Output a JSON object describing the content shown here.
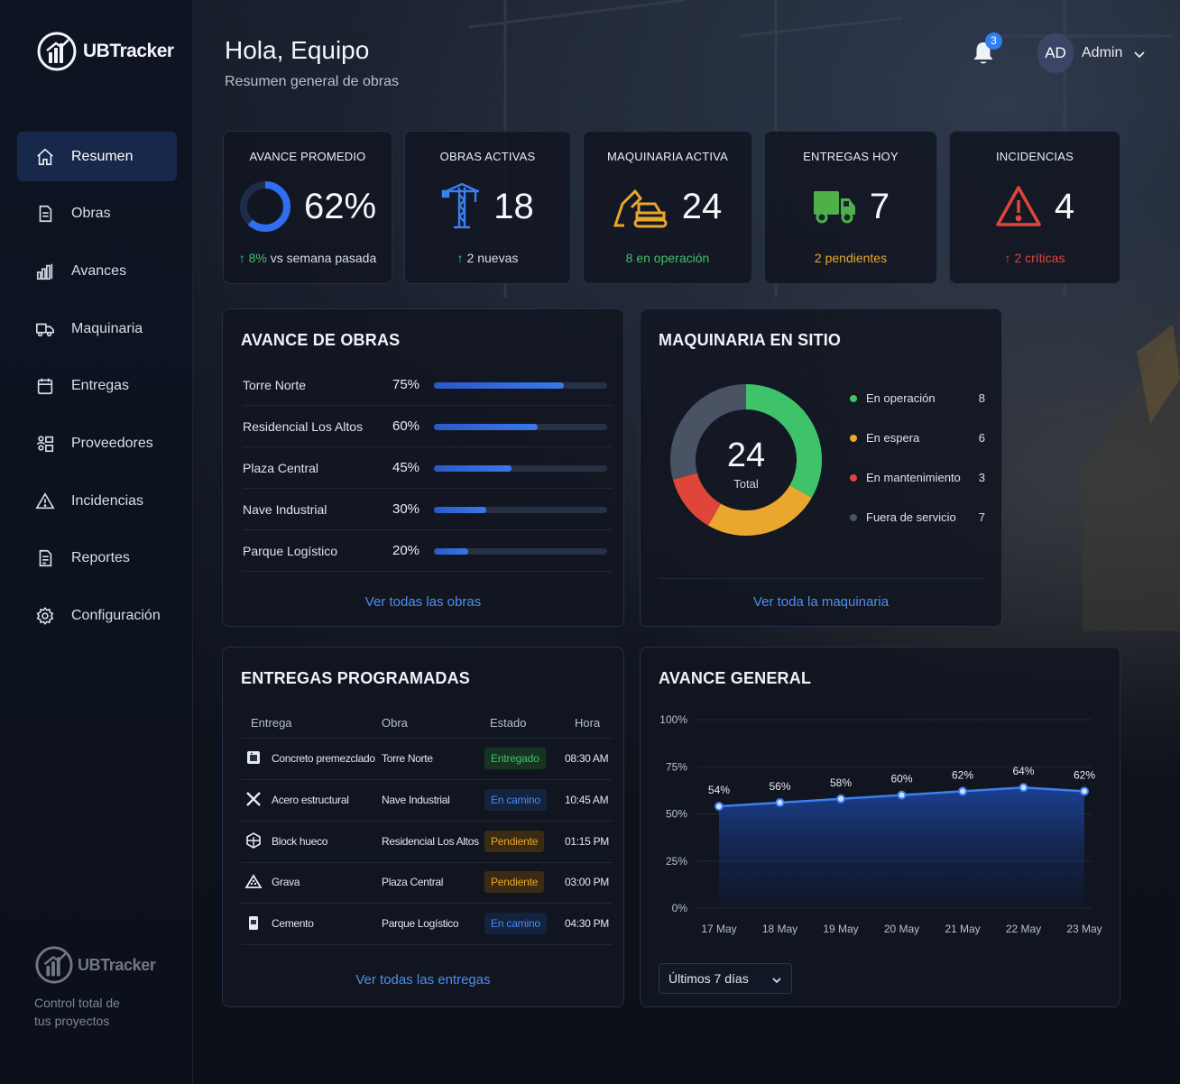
{
  "brand": {
    "name": "UBTracker",
    "tagline": "Control total de tus proyectos"
  },
  "sidebar": {
    "items": [
      {
        "label": "Resumen",
        "icon": "home-icon",
        "active": true
      },
      {
        "label": "Obras",
        "icon": "document-icon"
      },
      {
        "label": "Avances",
        "icon": "bar-chart-icon"
      },
      {
        "label": "Maquinaria",
        "icon": "truck-icon"
      },
      {
        "label": "Entregas",
        "icon": "calendar-icon"
      },
      {
        "label": "Proveedores",
        "icon": "suppliers-icon"
      },
      {
        "label": "Incidencias",
        "icon": "warning-icon"
      },
      {
        "label": "Reportes",
        "icon": "report-icon"
      },
      {
        "label": "Configuración",
        "icon": "gear-icon"
      }
    ]
  },
  "header": {
    "greeting": "Hola, Equipo",
    "subtitle": "Resumen general de obras",
    "notifications": "3",
    "avatar_initials": "AD",
    "user_name": "Admin"
  },
  "kpis": {
    "avance": {
      "title": "AVANCE PROMEDIO",
      "value": "62%",
      "progress": 0.62,
      "delta": "8%",
      "delta_text": "vs semana pasada"
    },
    "obras": {
      "title": "OBRAS ACTIVAS",
      "value": "18",
      "sub": "2 nuevas"
    },
    "maquinaria": {
      "title": "MAQUINARIA ACTIVA",
      "value": "24",
      "sub": "8 en operación"
    },
    "entregas": {
      "title": "ENTREGAS HOY",
      "value": "7",
      "sub": "2 pendientes"
    },
    "incidencias": {
      "title": "INCIDENCIAS",
      "value": "4",
      "sub": "2 críticas"
    }
  },
  "colors": {
    "accent": "#3b78e6",
    "green": "#3fc36a",
    "yellow": "#e9a72e",
    "red": "#e0453a",
    "gray": "#4a5364"
  },
  "avance_obras": {
    "title": "AVANCE DE OBRAS",
    "rows": [
      {
        "name": "Torre Norte",
        "pct": "75%",
        "value": 0.75
      },
      {
        "name": "Residencial Los Altos",
        "pct": "60%",
        "value": 0.6
      },
      {
        "name": "Plaza Central",
        "pct": "45%",
        "value": 0.45
      },
      {
        "name": "Nave Industrial",
        "pct": "30%",
        "value": 0.3
      },
      {
        "name": "Parque Logístico",
        "pct": "20%",
        "value": 0.2
      }
    ],
    "link": "Ver todas las obras"
  },
  "maquinaria": {
    "title": "MAQUINARIA EN SITIO",
    "total": "24",
    "total_label": "Total",
    "legend": [
      {
        "label": "En operación",
        "value": "8",
        "color": "#3fc36a"
      },
      {
        "label": "En espera",
        "value": "6",
        "color": "#e9a72e"
      },
      {
        "label": "En mantenimiento",
        "value": "3",
        "color": "#e0453a"
      },
      {
        "label": "Fuera de servicio",
        "value": "7",
        "color": "#4a5364"
      }
    ],
    "link": "Ver toda la maquinaria"
  },
  "entregas": {
    "title": "ENTREGAS PROGRAMADAS",
    "columns": [
      "Entrega",
      "Obra",
      "Estado",
      "Hora"
    ],
    "rows": [
      {
        "item": "Concreto premezclado",
        "obra": "Torre Norte",
        "estado": "Entregado",
        "hora": "08:30 AM",
        "icon": "concrete-mixer-icon",
        "status": "ok"
      },
      {
        "item": "Acero estructural",
        "obra": "Nave Industrial",
        "estado": "En camino",
        "hora": "10:45 AM",
        "icon": "steel-beam-icon",
        "status": "way"
      },
      {
        "item": "Block hueco",
        "obra": "Residencial Los Altos",
        "estado": "Pendiente",
        "hora": "01:15 PM",
        "icon": "blocks-icon",
        "status": "pend"
      },
      {
        "item": "Grava",
        "obra": "Plaza Central",
        "estado": "Pendiente",
        "hora": "03:00 PM",
        "icon": "gravel-icon",
        "status": "pend"
      },
      {
        "item": "Cemento",
        "obra": "Parque Logístico",
        "estado": "En camino",
        "hora": "04:30 PM",
        "icon": "cement-bag-icon",
        "status": "way"
      }
    ],
    "link": "Ver todas las entregas"
  },
  "avance_general": {
    "title": "AVANCE GENERAL",
    "range_select": "Últimos 7 días"
  },
  "chart_data": {
    "type": "area",
    "title": "AVANCE GENERAL",
    "categories": [
      "17 May",
      "18 May",
      "19 May",
      "20 May",
      "21 May",
      "22 May",
      "23 May"
    ],
    "values": [
      54,
      56,
      58,
      60,
      62,
      64,
      62
    ],
    "labels": [
      "54%",
      "56%",
      "58%",
      "60%",
      "62%",
      "64%",
      "62%"
    ],
    "yticks": [
      "0%",
      "25%",
      "50%",
      "75%",
      "100%"
    ],
    "ylim": [
      0,
      100
    ],
    "grid": true
  }
}
